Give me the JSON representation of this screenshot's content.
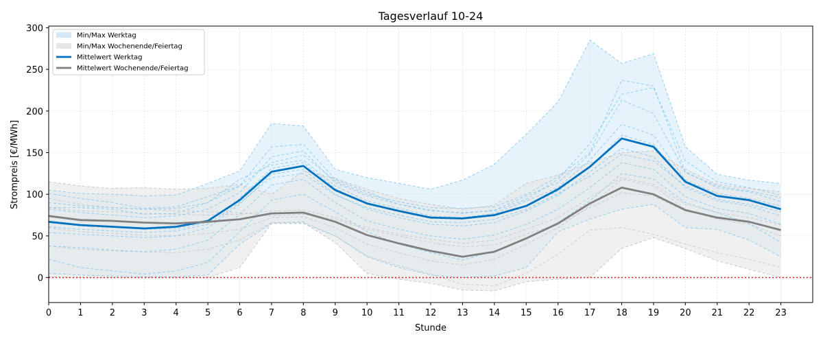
{
  "chart_data": {
    "type": "line",
    "title": "Tagesverlauf 10-24",
    "xlabel": "Stunde",
    "ylabel": "Strompreis [€/MWh]",
    "xlim": [
      0,
      24
    ],
    "ylim": [
      -30,
      302
    ],
    "x": [
      0,
      1,
      2,
      3,
      4,
      5,
      6,
      7,
      8,
      9,
      10,
      11,
      12,
      13,
      14,
      15,
      16,
      17,
      18,
      19,
      20,
      21,
      22,
      23
    ],
    "xticks": [
      0,
      1,
      2,
      3,
      4,
      5,
      6,
      7,
      8,
      9,
      10,
      11,
      12,
      13,
      14,
      15,
      16,
      17,
      18,
      19,
      20,
      21,
      22,
      23
    ],
    "yticks": [
      0,
      50,
      100,
      150,
      200,
      250,
      300
    ],
    "grid": true,
    "legend_position": "top-left",
    "reference_line": {
      "y": 0,
      "color": "#d62728",
      "style": "dotted"
    },
    "colors": {
      "weekday": "#0072bd",
      "weekday_fill": "#d4e9f8",
      "weekday_daily": "#7cc4ef",
      "weekend": "#808080",
      "weekend_fill": "#e6e6e6",
      "weekend_daily": "#bdbdbd"
    },
    "legend": [
      "Min/Max Werktag",
      "Min/Max Wochenende/Feiertag",
      "Mittelwert Werktag",
      "Mittelwert Wochenende/Feiertag"
    ],
    "series": [
      {
        "name": "Mittelwert Werktag",
        "values": [
          67,
          63,
          61,
          59,
          61,
          68,
          93,
          127,
          134,
          105,
          89,
          80,
          72,
          71,
          75,
          86,
          106,
          133,
          167,
          157,
          115,
          98,
          93,
          82
        ]
      },
      {
        "name": "Mittelwert Wochenende/Feiertag",
        "values": [
          74,
          69,
          68,
          66,
          65,
          67,
          70,
          77,
          78,
          67,
          51,
          41,
          32,
          25,
          31,
          47,
          65,
          89,
          108,
          100,
          81,
          72,
          67,
          57
        ]
      }
    ],
    "bands": [
      {
        "name": "Min/Max Werktag",
        "min": [
          5,
          3,
          2,
          1,
          1,
          3,
          40,
          65,
          65,
          50,
          25,
          12,
          3,
          0,
          2,
          12,
          55,
          70,
          82,
          88,
          60,
          58,
          45,
          25
        ],
        "max": [
          105,
          101,
          100,
          98,
          99,
          113,
          128,
          185,
          182,
          130,
          120,
          113,
          106,
          117,
          136,
          172,
          211,
          285,
          257,
          269,
          157,
          124,
          117,
          113
        ]
      },
      {
        "name": "Min/Max Wochenende/Feiertag",
        "min": [
          1,
          0,
          0,
          0,
          0,
          0,
          12,
          65,
          66,
          42,
          5,
          -2,
          -7,
          -15,
          -16,
          -5,
          -2,
          0,
          35,
          48,
          35,
          20,
          10,
          0
        ],
        "max": [
          115,
          110,
          107,
          108,
          106,
          107,
          112,
          100,
          128,
          119,
          106,
          95,
          88,
          82,
          87,
          113,
          123,
          138,
          150,
          152,
          130,
          112,
          107,
          103
        ]
      }
    ],
    "daily_weekday": [
      [
        101,
        95,
        90,
        83,
        85,
        97,
        110,
        157,
        160,
        118,
        103,
        88,
        81,
        77,
        81,
        98,
        114,
        148,
        213,
        197,
        126,
        110,
        104,
        96
      ],
      [
        84,
        84,
        82,
        76,
        77,
        90,
        118,
        135,
        141,
        110,
        92,
        83,
        74,
        72,
        77,
        92,
        108,
        141,
        184,
        171,
        117,
        101,
        95,
        86
      ],
      [
        66,
        62,
        60,
        58,
        59,
        66,
        95,
        131,
        138,
        107,
        88,
        79,
        71,
        70,
        74,
        86,
        104,
        132,
        171,
        160,
        114,
        97,
        92,
        82
      ],
      [
        38,
        36,
        33,
        31,
        34,
        45,
        76,
        111,
        118,
        90,
        68,
        58,
        50,
        46,
        51,
        64,
        82,
        108,
        138,
        130,
        97,
        83,
        77,
        64
      ],
      [
        22,
        12,
        8,
        4,
        8,
        18,
        55,
        93,
        100,
        79,
        55,
        40,
        30,
        21,
        32,
        46,
        66,
        92,
        125,
        118,
        90,
        78,
        65,
        42
      ],
      [
        82,
        78,
        75,
        72,
        74,
        82,
        102,
        145,
        152,
        114,
        98,
        88,
        80,
        78,
        80,
        94,
        118,
        161,
        220,
        228,
        140,
        115,
        108,
        99
      ],
      [
        90,
        86,
        84,
        82,
        83,
        90,
        110,
        138,
        147,
        116,
        100,
        91,
        84,
        83,
        85,
        100,
        121,
        150,
        237,
        230,
        127,
        108,
        103,
        91
      ],
      [
        54,
        52,
        50,
        48,
        50,
        60,
        88,
        124,
        130,
        100,
        82,
        72,
        64,
        62,
        66,
        80,
        99,
        127,
        155,
        145,
        108,
        92,
        86,
        74
      ],
      [
        61,
        58,
        56,
        54,
        56,
        64,
        90,
        120,
        125,
        99,
        84,
        75,
        67,
        66,
        70,
        82,
        101,
        122,
        148,
        140,
        110,
        94,
        88,
        79
      ]
    ],
    "daily_weekend": [
      [
        95,
        88,
        84,
        82,
        80,
        79,
        78,
        74,
        76,
        70,
        58,
        50,
        42,
        37,
        39,
        52,
        64,
        84,
        102,
        98,
        80,
        72,
        67,
        56
      ],
      [
        60,
        55,
        53,
        51,
        50,
        53,
        58,
        72,
        73,
        60,
        40,
        30,
        20,
        15,
        22,
        40,
        60,
        86,
        118,
        110,
        82,
        70,
        64,
        50
      ],
      [
        84,
        80,
        79,
        77,
        76,
        75,
        76,
        80,
        81,
        72,
        60,
        52,
        46,
        41,
        45,
        58,
        72,
        96,
        120,
        112,
        88,
        78,
        72,
        63
      ],
      [
        38,
        34,
        32,
        31,
        30,
        34,
        45,
        66,
        67,
        50,
        26,
        14,
        4,
        -8,
        -10,
        5,
        28,
        57,
        60,
        52,
        40,
        30,
        22,
        12
      ]
    ]
  },
  "ui": {
    "y_tick_labels": [
      "0",
      "50",
      "100",
      "150",
      "200",
      "250",
      "300"
    ],
    "x_tick_labels": [
      "0",
      "1",
      "2",
      "3",
      "4",
      "5",
      "6",
      "7",
      "8",
      "9",
      "10",
      "11",
      "12",
      "13",
      "14",
      "15",
      "16",
      "17",
      "18",
      "19",
      "20",
      "21",
      "22",
      "23"
    ]
  }
}
